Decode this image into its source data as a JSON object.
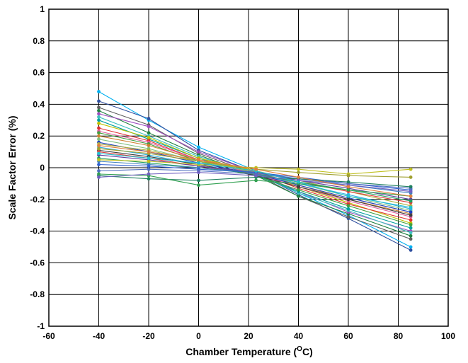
{
  "chart_data": {
    "type": "line",
    "title": "",
    "xlabel": "Chamber Temperature (",
    "xlabel_sup": "O",
    "xlabel_end": "C)",
    "ylabel": "Scale Factor Error (%)",
    "xlim": [
      -60,
      100
    ],
    "ylim": [
      -1,
      1
    ],
    "xticks": [
      -60,
      -40,
      -20,
      0,
      20,
      40,
      60,
      80,
      100
    ],
    "xtick_labels": [
      "-60",
      "-40",
      "-20",
      "0",
      "20",
      "40",
      "60",
      "80",
      "100"
    ],
    "yticks": [
      -1,
      -0.8,
      -0.6,
      -0.4,
      -0.2,
      0,
      0.2,
      0.4,
      0.6,
      0.8,
      1
    ],
    "ytick_labels": [
      "-1",
      "-0.8",
      "-0.6",
      "-0.4",
      "-0.2",
      "0",
      "0.2",
      "0.4",
      "0.6",
      "0.8",
      "1"
    ],
    "grid": true,
    "legend": "none",
    "x": [
      -40,
      -20,
      0,
      23,
      40,
      60,
      85
    ],
    "series": [
      {
        "color": "#00b0f0",
        "values": [
          0.48,
          0.3,
          0.13,
          -0.02,
          -0.16,
          -0.3,
          -0.5
        ]
      },
      {
        "color": "#3050a0",
        "values": [
          0.42,
          0.31,
          0.11,
          -0.03,
          -0.17,
          -0.32,
          -0.52
        ]
      },
      {
        "color": "#606060",
        "values": [
          0.38,
          0.27,
          0.09,
          -0.04,
          -0.18,
          -0.31,
          -0.45
        ]
      },
      {
        "color": "#208040",
        "values": [
          0.36,
          0.22,
          0.08,
          -0.05,
          -0.18,
          -0.29,
          -0.43
        ]
      },
      {
        "color": "#a050c0",
        "values": [
          0.34,
          0.26,
          0.1,
          -0.03,
          -0.15,
          -0.28,
          -0.4
        ]
      },
      {
        "color": "#40c0c0",
        "values": [
          0.32,
          0.2,
          0.07,
          -0.04,
          -0.16,
          -0.27,
          -0.41
        ]
      },
      {
        "color": "#00a0a0",
        "values": [
          0.3,
          0.18,
          0.06,
          -0.05,
          -0.15,
          -0.26,
          -0.38
        ]
      },
      {
        "color": "#c0c000",
        "values": [
          0.28,
          0.19,
          0.06,
          -0.02,
          -0.12,
          -0.22,
          -0.35
        ]
      },
      {
        "color": "#e03030",
        "values": [
          0.25,
          0.17,
          0.05,
          -0.03,
          -0.13,
          -0.23,
          -0.33
        ]
      },
      {
        "color": "#e060a0",
        "values": [
          0.23,
          0.16,
          0.05,
          -0.04,
          -0.12,
          -0.21,
          -0.31
        ]
      },
      {
        "color": "#40a040",
        "values": [
          0.22,
          0.15,
          0.04,
          -0.05,
          -0.14,
          -0.24,
          -0.36
        ]
      },
      {
        "color": "#d08030",
        "values": [
          0.2,
          0.14,
          0.05,
          -0.03,
          -0.11,
          -0.2,
          -0.29
        ]
      },
      {
        "color": "#80c080",
        "values": [
          0.18,
          0.12,
          0.04,
          -0.03,
          -0.1,
          -0.18,
          -0.27
        ]
      },
      {
        "color": "#2040c0",
        "values": [
          0.16,
          0.1,
          0.03,
          -0.04,
          -0.11,
          -0.19,
          -0.28
        ]
      },
      {
        "color": "#b0b040",
        "values": [
          0.15,
          0.11,
          0.04,
          -0.02,
          -0.08,
          -0.15,
          -0.24
        ]
      },
      {
        "color": "#30b0e0",
        "values": [
          0.13,
          0.08,
          0.02,
          -0.04,
          -0.1,
          -0.17,
          -0.26
        ]
      },
      {
        "color": "#404040",
        "values": [
          0.11,
          0.07,
          0.02,
          -0.05,
          -0.12,
          -0.2,
          -0.3
        ]
      },
      {
        "color": "#e04040",
        "values": [
          0.1,
          0.06,
          0.01,
          -0.04,
          -0.09,
          -0.15,
          -0.22
        ]
      },
      {
        "color": "#6040a0",
        "values": [
          0.08,
          0.05,
          0.01,
          -0.03,
          -0.08,
          -0.13,
          -0.2
        ]
      },
      {
        "color": "#20a060",
        "values": [
          0.06,
          0.03,
          0.0,
          -0.04,
          -0.09,
          -0.14,
          -0.21
        ]
      },
      {
        "color": "#4080c0",
        "values": [
          0.04,
          0.02,
          0.0,
          -0.03,
          -0.07,
          -0.11,
          -0.16
        ]
      },
      {
        "color": "#3060d0",
        "values": [
          0.02,
          0.01,
          -0.01,
          -0.03,
          -0.06,
          -0.1,
          -0.14
        ]
      },
      {
        "color": "#5070c0",
        "values": [
          -0.02,
          -0.01,
          -0.02,
          -0.04,
          -0.07,
          -0.1,
          -0.13
        ]
      },
      {
        "color": "#208060",
        "values": [
          -0.05,
          -0.07,
          -0.08,
          -0.06,
          -0.07,
          -0.09,
          -0.12
        ]
      },
      {
        "color": "#30a050",
        "values": [
          -0.04,
          -0.05,
          -0.11,
          -0.08,
          -0.1,
          -0.14,
          -0.18
        ]
      },
      {
        "color": "#c0c020",
        "values": [
          0.05,
          0.04,
          0.02,
          0.0,
          -0.01,
          -0.04,
          -0.01
        ]
      },
      {
        "color": "#a0a030",
        "values": [
          0.12,
          0.09,
          0.04,
          -0.01,
          -0.03,
          -0.05,
          -0.06
        ]
      },
      {
        "color": "#7060c0",
        "values": [
          -0.06,
          -0.04,
          -0.03,
          -0.05,
          -0.08,
          -0.11,
          -0.15
        ]
      },
      {
        "color": "#20c0d0",
        "values": [
          0.09,
          0.06,
          0.03,
          -0.02,
          -0.09,
          -0.18,
          -0.25
        ]
      },
      {
        "color": "#e08040",
        "values": [
          0.14,
          0.1,
          0.05,
          -0.01,
          -0.06,
          -0.12,
          -0.18
        ]
      }
    ]
  }
}
